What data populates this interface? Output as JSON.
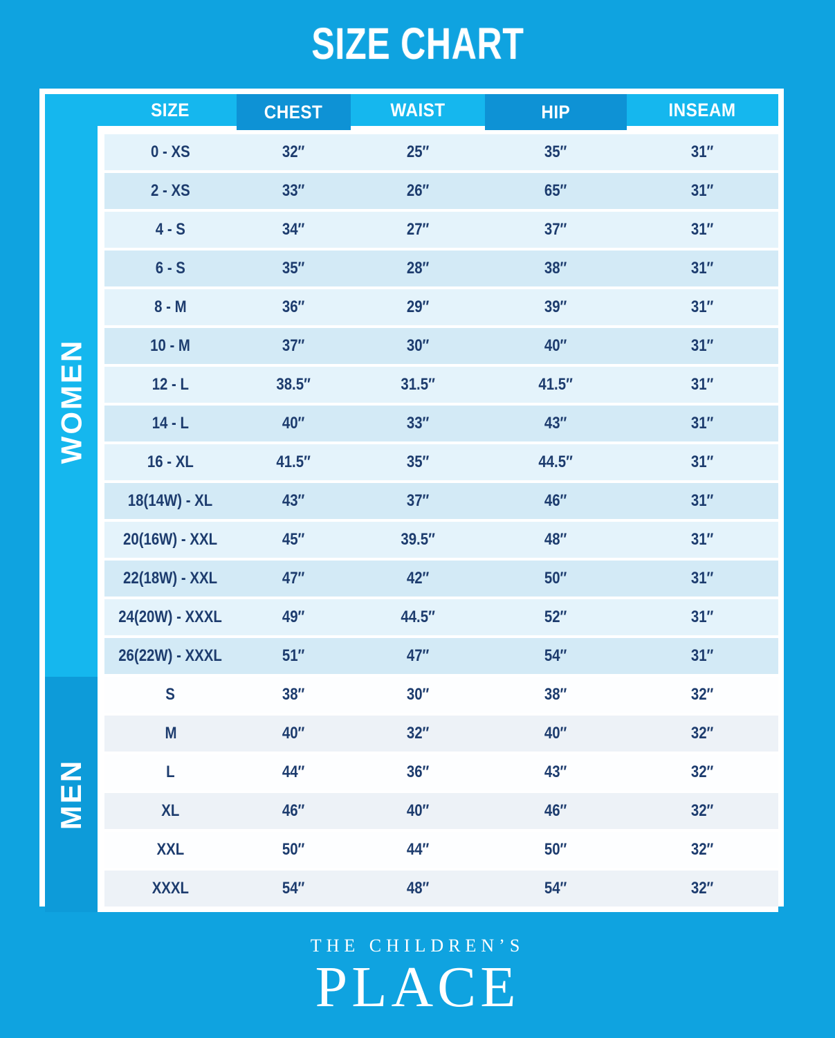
{
  "title": "SIZE CHART",
  "chart_data": {
    "type": "table",
    "title": "SIZE CHART",
    "columns": [
      "SIZE",
      "CHEST",
      "WAIST",
      "HIP",
      "INSEAM"
    ],
    "groups": [
      {
        "label": "WOMEN",
        "rows": [
          [
            "0 - XS",
            "32″",
            "25″",
            "35″",
            "31″"
          ],
          [
            "2 - XS",
            "33″",
            "26″",
            "65″",
            "31″"
          ],
          [
            "4 - S",
            "34″",
            "27″",
            "37″",
            "31″"
          ],
          [
            "6 - S",
            "35″",
            "28″",
            "38″",
            "31″"
          ],
          [
            "8 - M",
            "36″",
            "29″",
            "39″",
            "31″"
          ],
          [
            "10 - M",
            "37″",
            "30″",
            "40″",
            "31″"
          ],
          [
            "12 - L",
            "38.5″",
            "31.5″",
            "41.5″",
            "31″"
          ],
          [
            "14 - L",
            "40″",
            "33″",
            "43″",
            "31″"
          ],
          [
            "16 - XL",
            "41.5″",
            "35″",
            "44.5″",
            "31″"
          ],
          [
            "18(14W) - XL",
            "43″",
            "37″",
            "46″",
            "31″"
          ],
          [
            "20(16W) - XXL",
            "45″",
            "39.5″",
            "48″",
            "31″"
          ],
          [
            "22(18W) - XXL",
            "47″",
            "42″",
            "50″",
            "31″"
          ],
          [
            "24(20W) - XXXL",
            "49″",
            "44.5″",
            "52″",
            "31″"
          ],
          [
            "26(22W) - XXXL",
            "51″",
            "47″",
            "54″",
            "31″"
          ]
        ]
      },
      {
        "label": "MEN",
        "rows": [
          [
            "S",
            "38″",
            "30″",
            "38″",
            "32″"
          ],
          [
            "M",
            "40″",
            "32″",
            "40″",
            "32″"
          ],
          [
            "L",
            "44″",
            "36″",
            "43″",
            "32″"
          ],
          [
            "XL",
            "46″",
            "40″",
            "46″",
            "32″"
          ],
          [
            "XXL",
            "50″",
            "44″",
            "50″",
            "32″"
          ],
          [
            "XXXL",
            "54″",
            "48″",
            "54″",
            "32″"
          ]
        ]
      }
    ],
    "layout": {
      "legend": "none",
      "grid": "row-separators-white"
    }
  },
  "logo": {
    "line1": "THE CHILDREN’S",
    "line2": "PLACE"
  },
  "colors": {
    "background": "#0fa3e0",
    "header_light": "#15b7ee",
    "header_dark": "#0e92d5",
    "sidebar_women": "#15b7ee",
    "sidebar_men": "#0d9bd9",
    "row_light": "#e4f3fb",
    "row_dark": "#d3eaf6",
    "row_white": "#fdfeff",
    "row_gray": "#edf2f7",
    "text_navy": "#1d3c6e"
  }
}
